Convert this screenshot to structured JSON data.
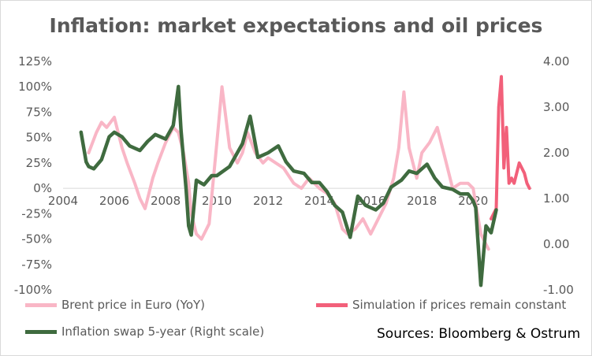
{
  "title": "Inflation: market expectations and oil prices",
  "sources": "Sources: Bloomberg & Ostrum",
  "colors": {
    "brent": "#f9b6c6",
    "simulation": "#f2607a",
    "swap": "#3f6b3f",
    "axis_text": "#595959",
    "grid": "#d9d9d9"
  },
  "chart_data": {
    "type": "line",
    "title": "Inflation: market expectations and oil prices",
    "x_axis": {
      "ticks": [
        "2004",
        "2006",
        "2008",
        "2010",
        "2012",
        "2014",
        "2016",
        "2018",
        "2020"
      ],
      "range": [
        2004,
        2022.3
      ]
    },
    "y_left": {
      "ticks": [
        "125%",
        "100%",
        "75%",
        "50%",
        "25%",
        "0%",
        "-25%",
        "-50%",
        "-75%",
        "-100%"
      ],
      "range": [
        -100,
        125
      ],
      "unit": "%"
    },
    "y_right": {
      "ticks": [
        "4.00",
        "3.00",
        "2.00",
        "1.00",
        "0.00",
        "-1.00"
      ],
      "range": [
        -1,
        4
      ]
    },
    "legend_position": "bottom",
    "series": [
      {
        "name": "Brent price in Euro (YoY)",
        "axis": "left",
        "x": [
          2005.0,
          2005.3,
          2005.5,
          2005.7,
          2006.0,
          2006.3,
          2006.5,
          2006.8,
          2007.0,
          2007.2,
          2007.5,
          2007.7,
          2008.0,
          2008.3,
          2008.5,
          2008.7,
          2008.9,
          2009.0,
          2009.2,
          2009.4,
          2009.7,
          2010.0,
          2010.2,
          2010.5,
          2010.8,
          2011.0,
          2011.2,
          2011.5,
          2011.8,
          2012.0,
          2012.3,
          2012.6,
          2013.0,
          2013.3,
          2013.6,
          2014.0,
          2014.3,
          2014.6,
          2014.9,
          2015.1,
          2015.4,
          2015.7,
          2016.0,
          2016.3,
          2016.6,
          2016.9,
          2017.1,
          2017.3,
          2017.5,
          2017.8,
          2018.0,
          2018.3,
          2018.6,
          2018.9,
          2019.2,
          2019.5,
          2019.8,
          2020.0,
          2020.3,
          2020.6
        ],
        "y": [
          35,
          55,
          65,
          60,
          70,
          40,
          25,
          5,
          -10,
          -20,
          10,
          25,
          45,
          60,
          55,
          35,
          5,
          -25,
          -45,
          -50,
          -35,
          45,
          100,
          40,
          25,
          35,
          55,
          35,
          25,
          30,
          25,
          20,
          5,
          0,
          10,
          0,
          -5,
          -15,
          -40,
          -45,
          -40,
          -30,
          -45,
          -30,
          -15,
          10,
          40,
          95,
          40,
          10,
          35,
          45,
          60,
          30,
          0,
          5,
          5,
          0,
          -45,
          -60
        ]
      },
      {
        "name": "Simulation if prices remain constant",
        "axis": "left",
        "x": [
          2020.7,
          2020.9,
          2021.0,
          2021.1,
          2021.2,
          2021.3,
          2021.4,
          2021.5,
          2021.6,
          2021.8,
          2022.0,
          2022.1,
          2022.2
        ],
        "y": [
          -30,
          -20,
          80,
          110,
          20,
          60,
          5,
          10,
          5,
          25,
          15,
          5,
          0
        ]
      },
      {
        "name": "Inflation swap 5-year (Right scale)",
        "axis": "right",
        "x": [
          2004.7,
          2004.9,
          2005.0,
          2005.2,
          2005.5,
          2005.8,
          2006.0,
          2006.3,
          2006.6,
          2007.0,
          2007.3,
          2007.6,
          2008.0,
          2008.3,
          2008.5,
          2008.6,
          2008.8,
          2008.9,
          2009.0,
          2009.2,
          2009.5,
          2009.8,
          2010.0,
          2010.5,
          2011.0,
          2011.3,
          2011.6,
          2012.0,
          2012.4,
          2012.7,
          2013.0,
          2013.4,
          2013.7,
          2014.0,
          2014.3,
          2014.6,
          2014.9,
          2015.2,
          2015.5,
          2015.8,
          2016.2,
          2016.5,
          2016.8,
          2017.2,
          2017.5,
          2017.8,
          2018.2,
          2018.5,
          2018.8,
          2019.2,
          2019.5,
          2019.8,
          2020.0,
          2020.1,
          2020.3,
          2020.5,
          2020.7,
          2020.9
        ],
        "y": [
          2.45,
          1.8,
          1.7,
          1.65,
          1.85,
          2.35,
          2.45,
          2.35,
          2.15,
          2.05,
          2.25,
          2.4,
          2.3,
          2.6,
          3.45,
          2.5,
          1.2,
          0.4,
          0.2,
          1.4,
          1.3,
          1.5,
          1.5,
          1.7,
          2.2,
          2.8,
          1.9,
          2.0,
          2.15,
          1.8,
          1.6,
          1.55,
          1.35,
          1.35,
          1.15,
          0.85,
          0.7,
          0.15,
          1.05,
          0.85,
          0.75,
          0.9,
          1.25,
          1.4,
          1.6,
          1.55,
          1.75,
          1.45,
          1.25,
          1.2,
          1.1,
          1.1,
          0.95,
          0.8,
          -0.9,
          0.4,
          0.25,
          0.75
        ]
      }
    ]
  }
}
